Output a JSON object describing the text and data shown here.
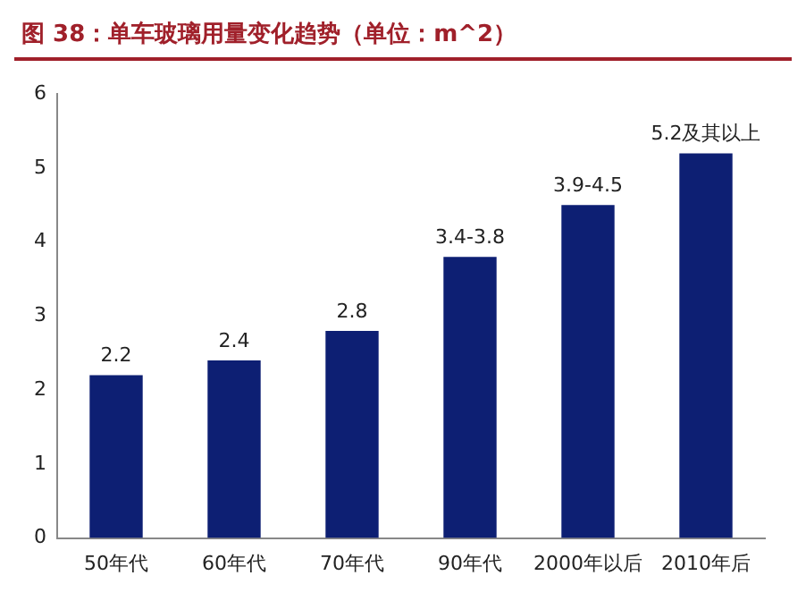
{
  "chart_data": {
    "type": "bar",
    "title": "图 38：单车玻璃用量变化趋势（单位：m^2）",
    "categories": [
      "50年代",
      "60年代",
      "70年代",
      "90年代",
      "2000年以后",
      "2010年后"
    ],
    "values": [
      2.2,
      2.4,
      2.8,
      3.8,
      4.5,
      5.2
    ],
    "value_labels": [
      "2.2",
      "2.4",
      "2.8",
      "3.4-3.8",
      "3.9-4.5",
      "5.2及其以上"
    ],
    "color": "#0d1f73",
    "ylim": [
      0,
      6
    ],
    "yticks": [
      0,
      1,
      2,
      3,
      4,
      5,
      6
    ],
    "grid": false,
    "legend": false
  }
}
